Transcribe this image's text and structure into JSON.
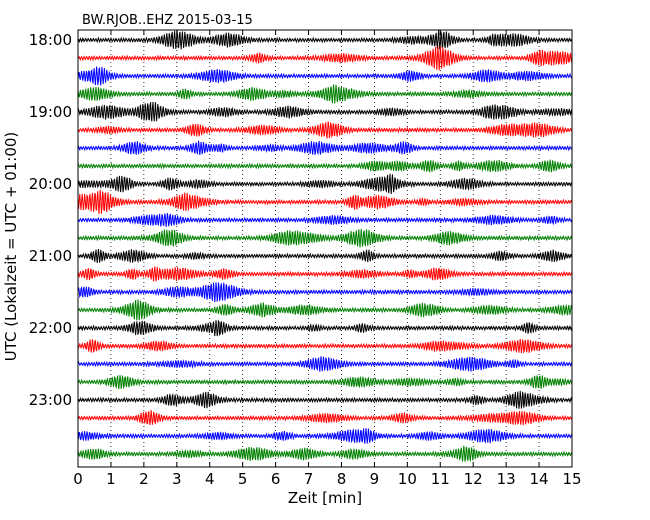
{
  "chart_data": {
    "type": "line",
    "title": "BW.RJOB..EHZ 2015-03-15",
    "xlabel": "Zeit  [min]",
    "ylabel": "UTC (Lokalzeit = UTC + 01:00)",
    "xlim": [
      0,
      15
    ],
    "x_ticks": [
      "0",
      "1",
      "2",
      "3",
      "4",
      "5",
      "6",
      "7",
      "8",
      "9",
      "10",
      "11",
      "12",
      "13",
      "14",
      "15"
    ],
    "y_tick_labels": [
      "18:00",
      "19:00",
      "20:00",
      "21:00",
      "22:00",
      "23:00"
    ],
    "row_interval_min": 15,
    "row_count": 24,
    "row_colors": [
      "#000000",
      "#ff0000",
      "#0000ff",
      "#008000"
    ],
    "grid": "vertical dotted lines at each minute",
    "legend": "none"
  }
}
